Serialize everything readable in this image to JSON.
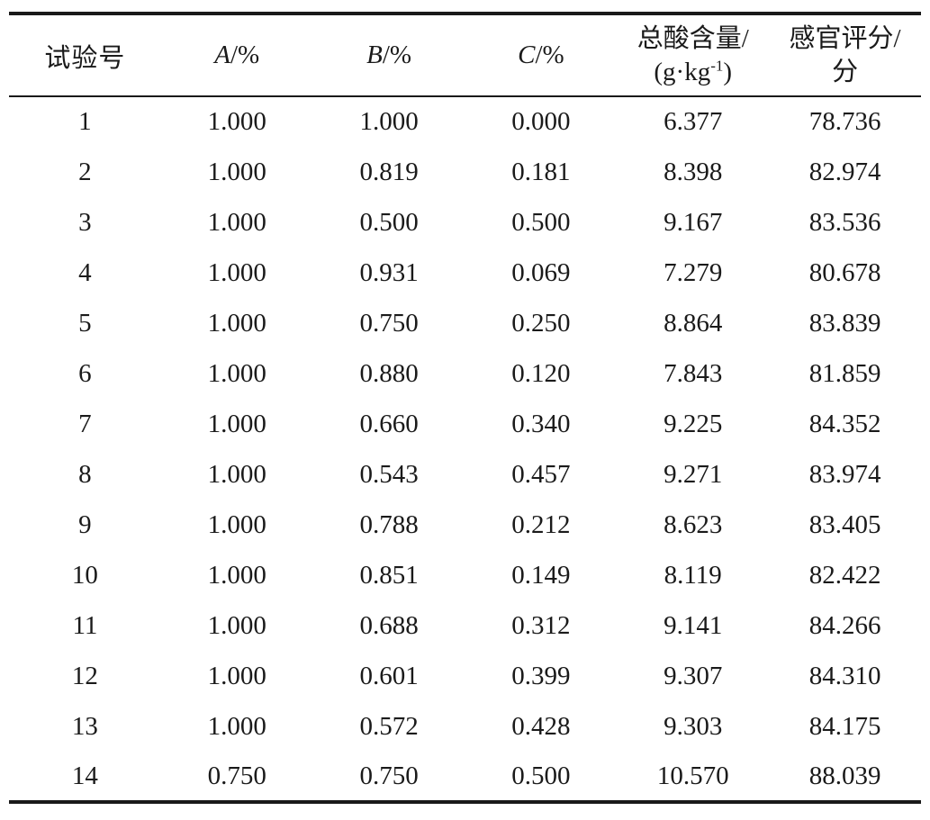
{
  "colors": {
    "background": "#ffffff",
    "text": "#1a1a1a",
    "rule": "#1a1a1a"
  },
  "table": {
    "header": {
      "trial": "试验号",
      "a": {
        "sym": "A",
        "unit": "/%"
      },
      "b": {
        "sym": "B",
        "unit": "/%"
      },
      "c": {
        "sym": "C",
        "unit": "/%"
      },
      "acid": {
        "line1": "总酸含量/",
        "line2_pre": "(g·kg",
        "sup": "-1",
        "line2_post": ")"
      },
      "score": {
        "line1": "感官评分/",
        "line2": "分"
      }
    },
    "rows": [
      [
        "1",
        "1.000",
        "1.000",
        "0.000",
        "6.377",
        "78.736"
      ],
      [
        "2",
        "1.000",
        "0.819",
        "0.181",
        "8.398",
        "82.974"
      ],
      [
        "3",
        "1.000",
        "0.500",
        "0.500",
        "9.167",
        "83.536"
      ],
      [
        "4",
        "1.000",
        "0.931",
        "0.069",
        "7.279",
        "80.678"
      ],
      [
        "5",
        "1.000",
        "0.750",
        "0.250",
        "8.864",
        "83.839"
      ],
      [
        "6",
        "1.000",
        "0.880",
        "0.120",
        "7.843",
        "81.859"
      ],
      [
        "7",
        "1.000",
        "0.660",
        "0.340",
        "9.225",
        "84.352"
      ],
      [
        "8",
        "1.000",
        "0.543",
        "0.457",
        "9.271",
        "83.974"
      ],
      [
        "9",
        "1.000",
        "0.788",
        "0.212",
        "8.623",
        "83.405"
      ],
      [
        "10",
        "1.000",
        "0.851",
        "0.149",
        "8.119",
        "82.422"
      ],
      [
        "11",
        "1.000",
        "0.688",
        "0.312",
        "9.141",
        "84.266"
      ],
      [
        "12",
        "1.000",
        "0.601",
        "0.399",
        "9.307",
        "84.310"
      ],
      [
        "13",
        "1.000",
        "0.572",
        "0.428",
        "9.303",
        "84.175"
      ],
      [
        "14",
        "0.750",
        "0.750",
        "0.500",
        "10.570",
        "88.039"
      ]
    ]
  },
  "chart_data": {
    "type": "table",
    "title": "",
    "columns": [
      "试验号",
      "A/%",
      "B/%",
      "C/%",
      "总酸含量/(g·kg-1)",
      "感官评分/分"
    ],
    "rows": [
      [
        1,
        1.0,
        1.0,
        0.0,
        6.377,
        78.736
      ],
      [
        2,
        1.0,
        0.819,
        0.181,
        8.398,
        82.974
      ],
      [
        3,
        1.0,
        0.5,
        0.5,
        9.167,
        83.536
      ],
      [
        4,
        1.0,
        0.931,
        0.069,
        7.279,
        80.678
      ],
      [
        5,
        1.0,
        0.75,
        0.25,
        8.864,
        83.839
      ],
      [
        6,
        1.0,
        0.88,
        0.12,
        7.843,
        81.859
      ],
      [
        7,
        1.0,
        0.66,
        0.34,
        9.225,
        84.352
      ],
      [
        8,
        1.0,
        0.543,
        0.457,
        9.271,
        83.974
      ],
      [
        9,
        1.0,
        0.788,
        0.212,
        8.623,
        83.405
      ],
      [
        10,
        1.0,
        0.851,
        0.149,
        8.119,
        82.422
      ],
      [
        11,
        1.0,
        0.688,
        0.312,
        9.141,
        84.266
      ],
      [
        12,
        1.0,
        0.601,
        0.399,
        9.307,
        84.31
      ],
      [
        13,
        1.0,
        0.572,
        0.428,
        9.303,
        84.175
      ],
      [
        14,
        0.75,
        0.75,
        0.5,
        10.57,
        88.039
      ]
    ]
  }
}
